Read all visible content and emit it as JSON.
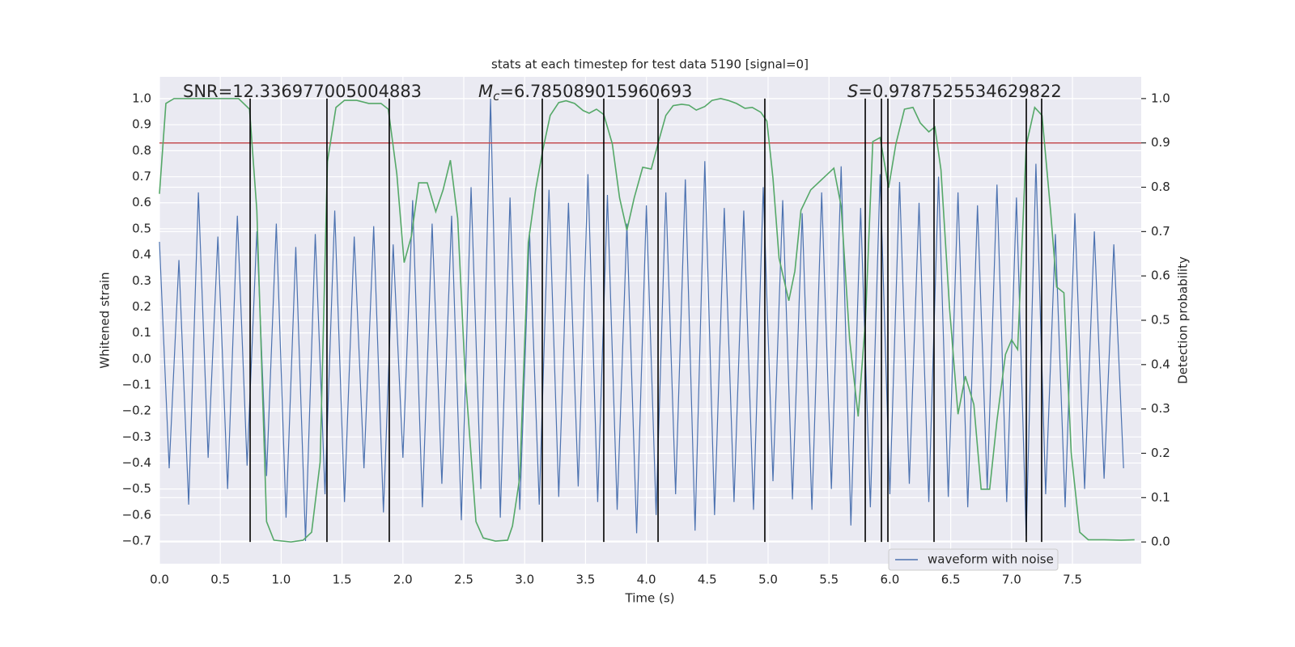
{
  "chart_data": {
    "type": "line",
    "title": "stats at each timestep for test data 5190 [signal=0]",
    "xlabel": "Time (s)",
    "ylabel": "Whitened strain",
    "y2label": "Detection probability",
    "annotations": [
      {
        "text": "SNR=12.336977005004883"
      },
      {
        "symbol": "M",
        "subscript": "c",
        "text": "=6.785089015960693"
      },
      {
        "symbol": "S",
        "text": "=0.9787525534629822"
      }
    ],
    "xlim": [
      0,
      8.065
    ],
    "ylim": [
      -0.787,
      1.084
    ],
    "y2lim": [
      -0.049,
      1.049
    ],
    "xticks": [
      {
        "value": 0,
        "label": "0.0"
      },
      0.5,
      {
        "value": 1,
        "label": "1.0"
      },
      1.5,
      {
        "value": 2,
        "label": "2.0"
      },
      2.5,
      {
        "value": 3,
        "label": "3.0"
      },
      3.5,
      {
        "value": 4,
        "label": "4.0"
      },
      4.5,
      {
        "value": 5,
        "label": "5.0"
      },
      5.5,
      {
        "value": 6,
        "label": "6.0"
      },
      6.5,
      {
        "value": 7,
        "label": "7.0"
      },
      7.5
    ],
    "yticks": [
      {
        "value": 1,
        "label": "1.0"
      },
      0.9,
      0.8,
      0.7,
      0.6,
      0.5,
      0.4,
      0.3,
      0.2,
      0.1,
      {
        "value": 0,
        "label": "0.0"
      },
      {
        "value": -0.1,
        "label": "−0.1"
      },
      {
        "value": -0.2,
        "label": "−0.2"
      },
      {
        "value": -0.3,
        "label": "−0.3"
      },
      {
        "value": -0.4,
        "label": "−0.4"
      },
      {
        "value": -0.5,
        "label": "−0.5"
      },
      {
        "value": -0.6,
        "label": "−0.6"
      },
      {
        "value": -0.7,
        "label": "−0.7"
      }
    ],
    "y2ticks": [
      {
        "value": 0,
        "label": "0.0"
      },
      0.1,
      0.2,
      0.3,
      0.4,
      0.5,
      0.6,
      0.7,
      0.8,
      0.9,
      {
        "value": 1,
        "label": "1.0"
      }
    ],
    "grid": true,
    "legend": "lower right",
    "series": [
      {
        "name": "waveform with noise",
        "color": "#4c72b0",
        "x": [
          0,
          0.08,
          0.16,
          0.24,
          0.32,
          0.4,
          0.48,
          0.56,
          0.64,
          0.72,
          0.8,
          0.88,
          0.96,
          1.04,
          1.12,
          1.2,
          1.28,
          1.36,
          1.44,
          1.52,
          1.6,
          1.68,
          1.76,
          1.84,
          1.92,
          2,
          2.08,
          2.16,
          2.24,
          2.32,
          2.4,
          2.48,
          2.56,
          2.64,
          2.72,
          2.8,
          2.88,
          2.96,
          3.04,
          3.12,
          3.2,
          3.28,
          3.36,
          3.44,
          3.52,
          3.6,
          3.68,
          3.76,
          3.84,
          3.92,
          4,
          4.08,
          4.16,
          4.24,
          4.32,
          4.4,
          4.48,
          4.56,
          4.64,
          4.72,
          4.8,
          4.88,
          4.96,
          5.04,
          5.12,
          5.2,
          5.28,
          5.36,
          5.44,
          5.52,
          5.6,
          5.68,
          5.76,
          5.84,
          5.92,
          6,
          6.08,
          6.16,
          6.24,
          6.32,
          6.4,
          6.48,
          6.56,
          6.64,
          6.72,
          6.8,
          6.88,
          6.96,
          7.04,
          7.12,
          7.2,
          7.28,
          7.36,
          7.44,
          7.52,
          7.6,
          7.68,
          7.76,
          7.84,
          7.92
        ],
        "values": [
          0.45,
          -0.42,
          0.38,
          -0.56,
          0.64,
          -0.38,
          0.47,
          -0.5,
          0.55,
          -0.41,
          0.49,
          -0.45,
          0.52,
          -0.61,
          0.43,
          -0.7,
          0.48,
          -0.52,
          0.57,
          -0.55,
          0.47,
          -0.42,
          0.51,
          -0.59,
          0.44,
          -0.38,
          0.61,
          -0.57,
          0.52,
          -0.48,
          0.55,
          -0.62,
          0.66,
          -0.5,
          1.0,
          -0.61,
          0.62,
          -0.58,
          0.49,
          -0.56,
          0.65,
          -0.53,
          0.6,
          -0.49,
          0.71,
          -0.55,
          0.63,
          -0.58,
          0.52,
          -0.67,
          0.59,
          -0.6,
          0.64,
          -0.52,
          0.69,
          -0.66,
          0.76,
          -0.6,
          0.58,
          -0.55,
          0.57,
          -0.58,
          0.66,
          -0.47,
          0.61,
          -0.54,
          0.56,
          -0.58,
          0.64,
          -0.5,
          0.74,
          -0.64,
          0.58,
          -0.57,
          0.71,
          -0.52,
          0.68,
          -0.48,
          0.6,
          -0.55,
          0.7,
          -0.53,
          0.64,
          -0.57,
          0.59,
          -0.5,
          0.67,
          -0.55,
          0.62,
          -0.68,
          0.75,
          -0.52,
          0.48,
          -0.57,
          0.56,
          -0.5,
          0.49,
          -0.46,
          0.44,
          -0.42
        ]
      },
      {
        "color": "#55a868",
        "axis": "y2",
        "x": [
          0,
          0.053,
          0.12,
          0.25,
          0.5,
          0.65,
          0.74,
          0.8,
          0.88,
          0.94,
          1.08,
          1.18,
          1.25,
          1.32,
          1.38,
          1.45,
          1.52,
          1.62,
          1.72,
          1.82,
          1.88,
          1.95,
          2.01,
          2.07,
          2.13,
          2.2,
          2.27,
          2.33,
          2.39,
          2.45,
          2.51,
          2.6,
          2.66,
          2.76,
          2.86,
          2.9,
          2.96,
          3.03,
          3.09,
          3.15,
          3.21,
          3.28,
          3.34,
          3.41,
          3.48,
          3.53,
          3.59,
          3.65,
          3.72,
          3.78,
          3.84,
          3.9,
          3.97,
          4.04,
          4.1,
          4.16,
          4.22,
          4.29,
          4.35,
          4.41,
          4.48,
          4.54,
          4.61,
          4.67,
          4.74,
          4.81,
          4.87,
          4.94,
          4.99,
          5.04,
          5.09,
          5.17,
          5.22,
          5.27,
          5.35,
          5.54,
          5.6,
          5.67,
          5.74,
          5.8,
          5.86,
          5.92,
          5.99,
          6.05,
          6.12,
          6.19,
          6.25,
          6.32,
          6.37,
          6.42,
          6.49,
          6.56,
          6.62,
          6.69,
          6.75,
          6.82,
          6.88,
          6.95,
          7.0,
          7.05,
          7.12,
          7.19,
          7.25,
          7.32,
          7.37,
          7.43,
          7.49,
          7.56,
          7.63,
          7.76,
          7.9,
          8.01
        ],
        "values": [
          0.785,
          0.989,
          1.0,
          1.0,
          1.0,
          1.0,
          0.976,
          0.748,
          0.046,
          0.004,
          0.0,
          0.004,
          0.022,
          0.18,
          0.858,
          0.98,
          0.996,
          0.996,
          0.989,
          0.989,
          0.976,
          0.83,
          0.63,
          0.69,
          0.81,
          0.81,
          0.745,
          0.794,
          0.861,
          0.73,
          0.383,
          0.046,
          0.009,
          0.002,
          0.004,
          0.036,
          0.146,
          0.675,
          0.794,
          0.885,
          0.962,
          0.991,
          0.995,
          0.989,
          0.973,
          0.967,
          0.976,
          0.964,
          0.898,
          0.776,
          0.703,
          0.776,
          0.845,
          0.841,
          0.903,
          0.962,
          0.984,
          0.987,
          0.985,
          0.974,
          0.982,
          0.996,
          1.0,
          0.996,
          0.989,
          0.978,
          0.98,
          0.969,
          0.949,
          0.82,
          0.64,
          0.544,
          0.611,
          0.748,
          0.794,
          0.843,
          0.757,
          0.456,
          0.283,
          0.502,
          0.903,
          0.912,
          0.799,
          0.898,
          0.976,
          0.98,
          0.945,
          0.925,
          0.936,
          0.839,
          0.529,
          0.288,
          0.374,
          0.31,
          0.119,
          0.119,
          0.274,
          0.423,
          0.456,
          0.434,
          0.894,
          0.98,
          0.962,
          0.748,
          0.575,
          0.562,
          0.201,
          0.022,
          0.005,
          0.005,
          0.004,
          0.005
        ]
      }
    ],
    "threshold": {
      "value": 0.9,
      "axis": "y2",
      "color": "#c44e52"
    },
    "vlines": {
      "x": [
        0.745,
        1.376,
        1.888,
        3.145,
        3.65,
        4.096,
        4.973,
        5.798,
        5.931,
        5.984,
        6.363,
        7.121,
        7.247
      ],
      "y2": [
        0,
        1
      ],
      "color": "#000000"
    }
  }
}
